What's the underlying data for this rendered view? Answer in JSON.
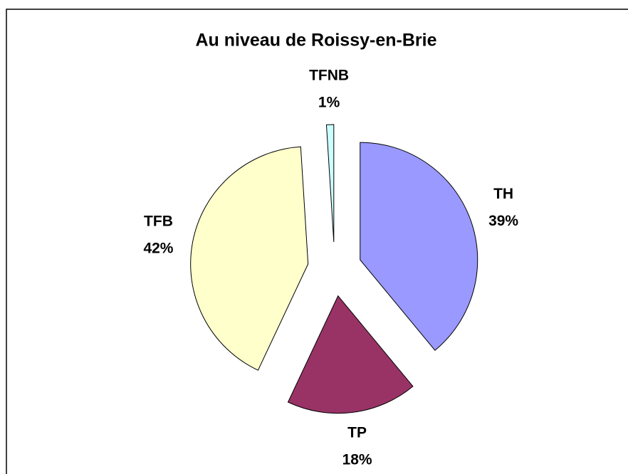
{
  "chart_data": {
    "type": "pie",
    "title": "Au niveau de Roissy-en-Brie",
    "categories": [
      "TH",
      "TP",
      "TFB",
      "TFNB"
    ],
    "values": [
      39,
      18,
      42,
      1
    ],
    "value_labels": [
      "39%",
      "18%",
      "42%",
      "1%"
    ],
    "colors": [
      "#9999ff",
      "#993366",
      "#ffffcc",
      "#ccffff"
    ]
  }
}
